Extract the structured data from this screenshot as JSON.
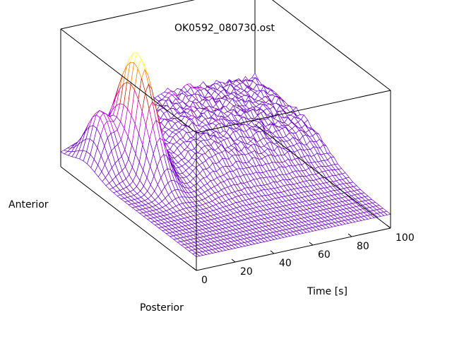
{
  "chart_data": {
    "type": "surface",
    "title": "OK0592_080730.ost",
    "xlabel": "Time [s]",
    "ylabel_front": "Posterior",
    "ylabel_back": "Anterior",
    "zlabel": "",
    "xlim": [
      0,
      100
    ],
    "xticks": [
      "0",
      "20",
      "40",
      "60",
      "80",
      "100"
    ],
    "grid": false,
    "colormap": [
      "#6a00c8",
      "#b000e0",
      "#e00090",
      "#c02000",
      "#ff8000",
      "#ffff40"
    ],
    "surface_features": [
      {
        "feature": "baseline",
        "value": 0.1
      },
      {
        "feature": "peak",
        "time": 20,
        "position": "anterior",
        "value": 0.95
      },
      {
        "feature": "second peak",
        "time": 28,
        "position": "anterior",
        "value": 0.6
      },
      {
        "feature": "noisy plateau",
        "time_range": [
          40,
          100
        ],
        "position": "anterior",
        "value": 0.45
      }
    ]
  }
}
